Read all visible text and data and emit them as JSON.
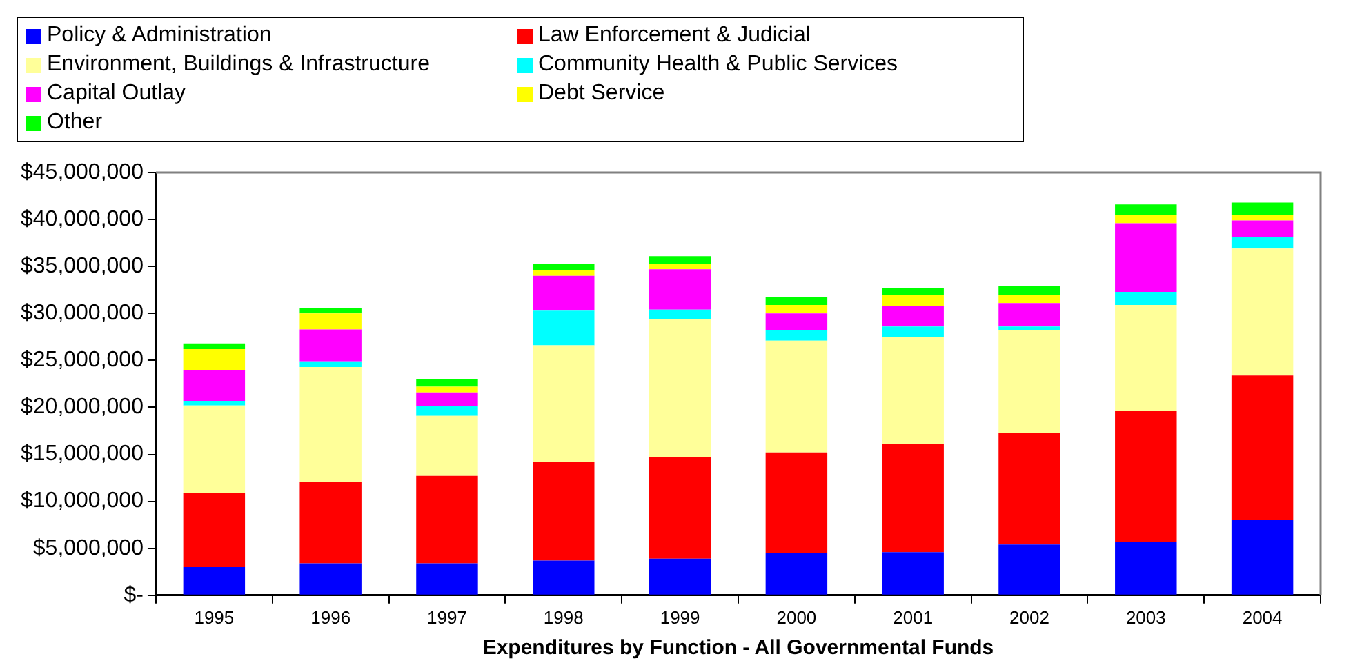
{
  "chart_data": {
    "type": "bar",
    "stacked": true,
    "xlabel": "Expenditures by Function - All Governmental Funds",
    "categories": [
      "1995",
      "1996",
      "1997",
      "1998",
      "1999",
      "2000",
      "2001",
      "2002",
      "2003",
      "2004"
    ],
    "series": [
      {
        "name": "Policy & Administration",
        "color": "#0000ff",
        "values": [
          3000000,
          3400000,
          3400000,
          3700000,
          3900000,
          4500000,
          4600000,
          5400000,
          5700000,
          8000000
        ]
      },
      {
        "name": "Law Enforcement & Judicial",
        "color": "#ff0000",
        "values": [
          7900000,
          8700000,
          9300000,
          10500000,
          10800000,
          10700000,
          11500000,
          11900000,
          13900000,
          15400000
        ]
      },
      {
        "name": "Environment, Buildings & Infrastructure",
        "color": "#ffff99",
        "values": [
          9300000,
          12200000,
          6400000,
          12400000,
          14700000,
          11900000,
          11400000,
          10900000,
          11300000,
          13500000
        ]
      },
      {
        "name": "Community Health & Public Services",
        "color": "#00ffff",
        "values": [
          500000,
          600000,
          1000000,
          3700000,
          1000000,
          1100000,
          1100000,
          400000,
          1400000,
          1200000
        ]
      },
      {
        "name": "Capital Outlay",
        "color": "#ff00ff",
        "values": [
          3300000,
          3400000,
          1500000,
          3700000,
          4300000,
          1800000,
          2200000,
          2500000,
          7300000,
          1800000
        ]
      },
      {
        "name": "Debt Service",
        "color": "#ffff00",
        "values": [
          2200000,
          1700000,
          600000,
          600000,
          600000,
          900000,
          1200000,
          900000,
          900000,
          600000
        ]
      },
      {
        "name": "Other",
        "color": "#00ff00",
        "values": [
          600000,
          600000,
          800000,
          700000,
          800000,
          800000,
          700000,
          900000,
          1100000,
          1300000
        ]
      }
    ],
    "ylim": [
      0,
      45000000
    ],
    "yticks": [
      {
        "value": 0,
        "label": "$-"
      },
      {
        "value": 5000000,
        "label": "$5,000,000"
      },
      {
        "value": 10000000,
        "label": "$10,000,000"
      },
      {
        "value": 15000000,
        "label": "$15,000,000"
      },
      {
        "value": 20000000,
        "label": "$20,000,000"
      },
      {
        "value": 25000000,
        "label": "$25,000,000"
      },
      {
        "value": 30000000,
        "label": "$30,000,000"
      },
      {
        "value": 35000000,
        "label": "$35,000,000"
      },
      {
        "value": 40000000,
        "label": "$40,000,000"
      },
      {
        "value": 45000000,
        "label": "$45,000,000"
      }
    ],
    "legend": "top left"
  }
}
